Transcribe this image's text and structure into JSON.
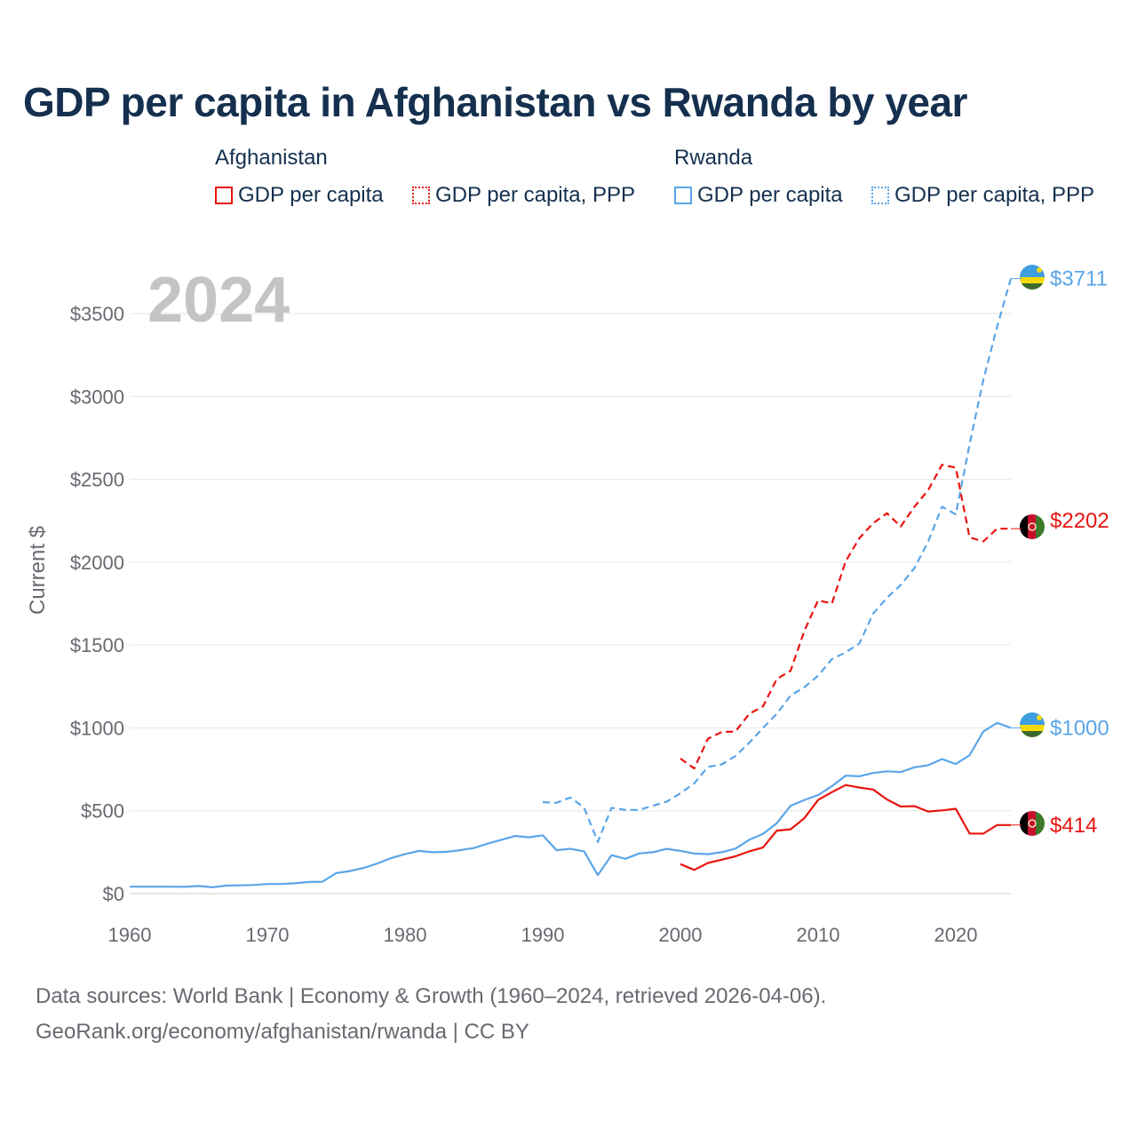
{
  "title": "GDP per capita in Afghanistan vs Rwanda by year",
  "legend": {
    "afghanistan": {
      "name": "Afghanistan",
      "gdp": "GDP per capita",
      "ppp": "GDP per capita, PPP"
    },
    "rwanda": {
      "name": "Rwanda",
      "gdp": "GDP per capita",
      "ppp": "GDP per capita, PPP"
    }
  },
  "colors": {
    "afghanistan": "#e8140f",
    "rwanda": "#5aa5e8",
    "grid": "#e6e6e6",
    "axis_text": "#666a70",
    "year_watermark": "#c4c4c4"
  },
  "footer": {
    "line1": "Data sources: World Bank | Economy & Growth (1960–2024, retrieved 2026-04-06).",
    "line2": "GeoRank.org/economy/afghanistan/rwanda | CC BY"
  },
  "chart_data": {
    "type": "line",
    "year_label": "2024",
    "ylabel": "Current $",
    "xlim": [
      1960,
      2024
    ],
    "ylim": [
      0,
      3500
    ],
    "x_ticks": [
      1960,
      1970,
      1980,
      1990,
      2000,
      2010,
      2020
    ],
    "y_ticks": [
      0,
      500,
      1000,
      1500,
      2000,
      2500,
      3000,
      3500
    ],
    "y_tick_labels": [
      "$0",
      "$500",
      "$1000",
      "$1500",
      "$2000",
      "$2500",
      "$3000",
      "$3500"
    ],
    "series": [
      {
        "name": "Rwanda GDP per capita",
        "country": "rwanda",
        "style": "solid",
        "end_label": "$1000",
        "points": [
          [
            1960,
            42
          ],
          [
            1961,
            42
          ],
          [
            1962,
            42
          ],
          [
            1963,
            42
          ],
          [
            1964,
            41
          ],
          [
            1965,
            46
          ],
          [
            1966,
            38
          ],
          [
            1967,
            48
          ],
          [
            1968,
            50
          ],
          [
            1969,
            52
          ],
          [
            1970,
            58
          ],
          [
            1971,
            58
          ],
          [
            1972,
            62
          ],
          [
            1973,
            70
          ],
          [
            1974,
            72
          ],
          [
            1975,
            124
          ],
          [
            1976,
            136
          ],
          [
            1977,
            155
          ],
          [
            1978,
            182
          ],
          [
            1979,
            215
          ],
          [
            1980,
            238
          ],
          [
            1981,
            258
          ],
          [
            1982,
            250
          ],
          [
            1983,
            252
          ],
          [
            1984,
            262
          ],
          [
            1985,
            275
          ],
          [
            1986,
            302
          ],
          [
            1987,
            325
          ],
          [
            1988,
            348
          ],
          [
            1989,
            340
          ],
          [
            1990,
            352
          ],
          [
            1991,
            262
          ],
          [
            1992,
            270
          ],
          [
            1993,
            255
          ],
          [
            1994,
            112
          ],
          [
            1995,
            232
          ],
          [
            1996,
            210
          ],
          [
            1997,
            242
          ],
          [
            1998,
            250
          ],
          [
            1999,
            270
          ],
          [
            2000,
            258
          ],
          [
            2001,
            242
          ],
          [
            2002,
            238
          ],
          [
            2003,
            250
          ],
          [
            2004,
            272
          ],
          [
            2005,
            325
          ],
          [
            2006,
            360
          ],
          [
            2007,
            425
          ],
          [
            2008,
            530
          ],
          [
            2009,
            565
          ],
          [
            2010,
            595
          ],
          [
            2011,
            648
          ],
          [
            2012,
            712
          ],
          [
            2013,
            708
          ],
          [
            2014,
            728
          ],
          [
            2015,
            738
          ],
          [
            2016,
            733
          ],
          [
            2017,
            762
          ],
          [
            2018,
            775
          ],
          [
            2019,
            812
          ],
          [
            2020,
            782
          ],
          [
            2021,
            835
          ],
          [
            2022,
            978
          ],
          [
            2023,
            1030
          ],
          [
            2024,
            1000
          ]
        ]
      },
      {
        "name": "Rwanda GDP per capita, PPP",
        "country": "rwanda",
        "style": "dashed",
        "end_label": "$3711",
        "points": [
          [
            1990,
            552
          ],
          [
            1991,
            548
          ],
          [
            1992,
            580
          ],
          [
            1993,
            520
          ],
          [
            1994,
            312
          ],
          [
            1995,
            518
          ],
          [
            1996,
            505
          ],
          [
            1997,
            505
          ],
          [
            1998,
            530
          ],
          [
            1999,
            555
          ],
          [
            2000,
            605
          ],
          [
            2001,
            665
          ],
          [
            2002,
            765
          ],
          [
            2003,
            780
          ],
          [
            2004,
            830
          ],
          [
            2005,
            910
          ],
          [
            2006,
            1000
          ],
          [
            2007,
            1085
          ],
          [
            2008,
            1195
          ],
          [
            2009,
            1245
          ],
          [
            2010,
            1315
          ],
          [
            2011,
            1415
          ],
          [
            2012,
            1455
          ],
          [
            2013,
            1510
          ],
          [
            2014,
            1690
          ],
          [
            2015,
            1785
          ],
          [
            2016,
            1862
          ],
          [
            2017,
            1965
          ],
          [
            2018,
            2125
          ],
          [
            2019,
            2335
          ],
          [
            2020,
            2288
          ],
          [
            2021,
            2710
          ],
          [
            2022,
            3100
          ],
          [
            2023,
            3420
          ],
          [
            2024,
            3711
          ]
        ]
      },
      {
        "name": "Afghanistan GDP per capita",
        "country": "afghanistan",
        "style": "solid",
        "end_label": "$414",
        "points": [
          [
            2000,
            178
          ],
          [
            2001,
            143
          ],
          [
            2002,
            185
          ],
          [
            2003,
            205
          ],
          [
            2004,
            225
          ],
          [
            2005,
            255
          ],
          [
            2006,
            278
          ],
          [
            2007,
            380
          ],
          [
            2008,
            388
          ],
          [
            2009,
            455
          ],
          [
            2010,
            565
          ],
          [
            2011,
            612
          ],
          [
            2012,
            655
          ],
          [
            2013,
            640
          ],
          [
            2014,
            628
          ],
          [
            2015,
            568
          ],
          [
            2016,
            525
          ],
          [
            2017,
            528
          ],
          [
            2018,
            495
          ],
          [
            2019,
            502
          ],
          [
            2020,
            512
          ],
          [
            2021,
            363
          ],
          [
            2022,
            362
          ],
          [
            2023,
            414
          ],
          [
            2024,
            414
          ]
        ]
      },
      {
        "name": "Afghanistan GDP per capita, PPP",
        "country": "afghanistan",
        "style": "dashed",
        "end_label": "$2202",
        "points": [
          [
            2000,
            815
          ],
          [
            2001,
            755
          ],
          [
            2002,
            935
          ],
          [
            2003,
            975
          ],
          [
            2004,
            978
          ],
          [
            2005,
            1085
          ],
          [
            2006,
            1130
          ],
          [
            2007,
            1295
          ],
          [
            2008,
            1345
          ],
          [
            2009,
            1585
          ],
          [
            2010,
            1770
          ],
          [
            2011,
            1750
          ],
          [
            2012,
            2005
          ],
          [
            2013,
            2145
          ],
          [
            2014,
            2235
          ],
          [
            2015,
            2295
          ],
          [
            2016,
            2215
          ],
          [
            2017,
            2335
          ],
          [
            2018,
            2435
          ],
          [
            2019,
            2588
          ],
          [
            2020,
            2570
          ],
          [
            2021,
            2150
          ],
          [
            2022,
            2125
          ],
          [
            2023,
            2202
          ],
          [
            2024,
            2202
          ]
        ]
      }
    ]
  }
}
